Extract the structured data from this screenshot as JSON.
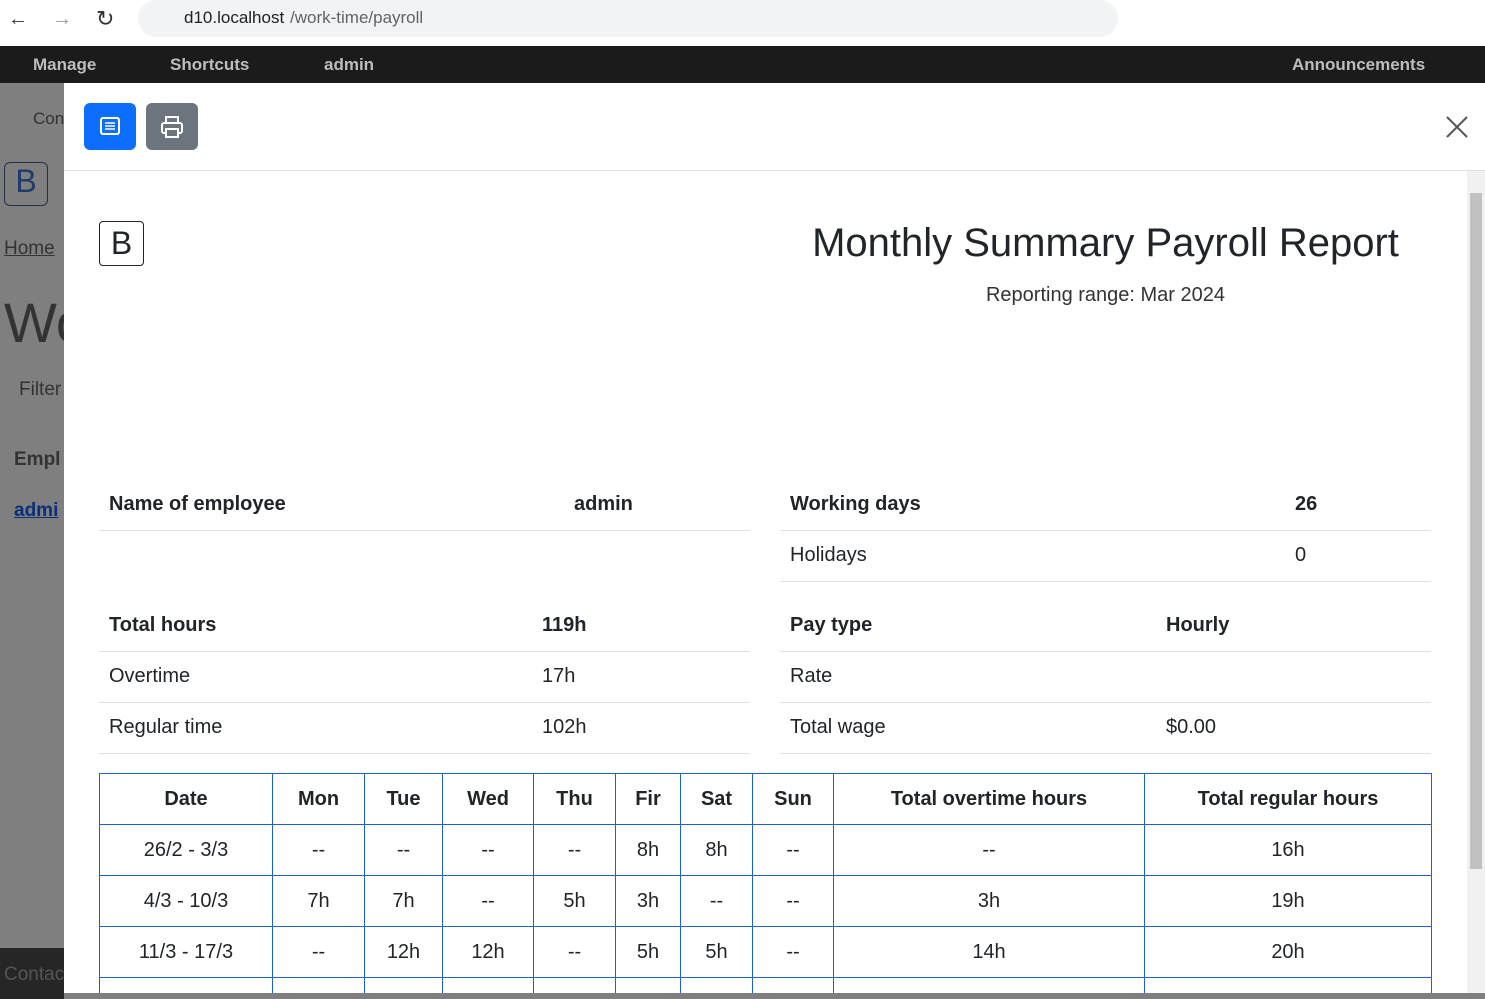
{
  "browser": {
    "url_host": "d10.localhost",
    "url_path": "/work-time/payroll"
  },
  "toolbar": {
    "manage": "Manage",
    "shortcuts": "Shortcuts",
    "user": "admin",
    "announcements": "Announcements"
  },
  "background": {
    "tab": "Con",
    "logo": "B",
    "breadcrumb": "Home",
    "heading": "Wo",
    "filter": "Filter",
    "column": "Empl",
    "link": "admi",
    "footer": "Contac"
  },
  "report": {
    "logo": "B",
    "title": "Monthly Summary Payroll Report",
    "subtitle": "Reporting range: Mar 2024",
    "info_tables": [
      {
        "rows": [
          [
            "Name of employee",
            "admin"
          ]
        ]
      },
      {
        "rows": [
          [
            "Working days",
            "26"
          ],
          [
            "Holidays",
            "0"
          ]
        ]
      },
      {
        "rows": [
          [
            "Total hours",
            "119h"
          ],
          [
            "Overtime",
            "17h"
          ],
          [
            "Regular time",
            "102h"
          ]
        ]
      },
      {
        "rows": [
          [
            "Pay type",
            "Hourly"
          ],
          [
            "Rate"
          ],
          [
            "Total wage",
            "$0.00"
          ]
        ]
      }
    ],
    "weekly_table": {
      "headers": [
        "Date",
        "Mon",
        "Tue",
        "Wed",
        "Thu",
        "Fir",
        "Sat",
        "Sun",
        "Total overtime hours",
        "Total regular hours"
      ],
      "rows": [
        [
          "26/2 - 3/3",
          "--",
          "--",
          "--",
          "--",
          "8h",
          "8h",
          "--",
          "--",
          "16h"
        ],
        [
          "4/3 - 10/3",
          "7h",
          "7h",
          "--",
          "5h",
          "3h",
          "--",
          "--",
          "3h",
          "19h"
        ],
        [
          "11/3 - 17/3",
          "--",
          "12h",
          "12h",
          "--",
          "5h",
          "5h",
          "--",
          "14h",
          "20h"
        ]
      ]
    }
  }
}
